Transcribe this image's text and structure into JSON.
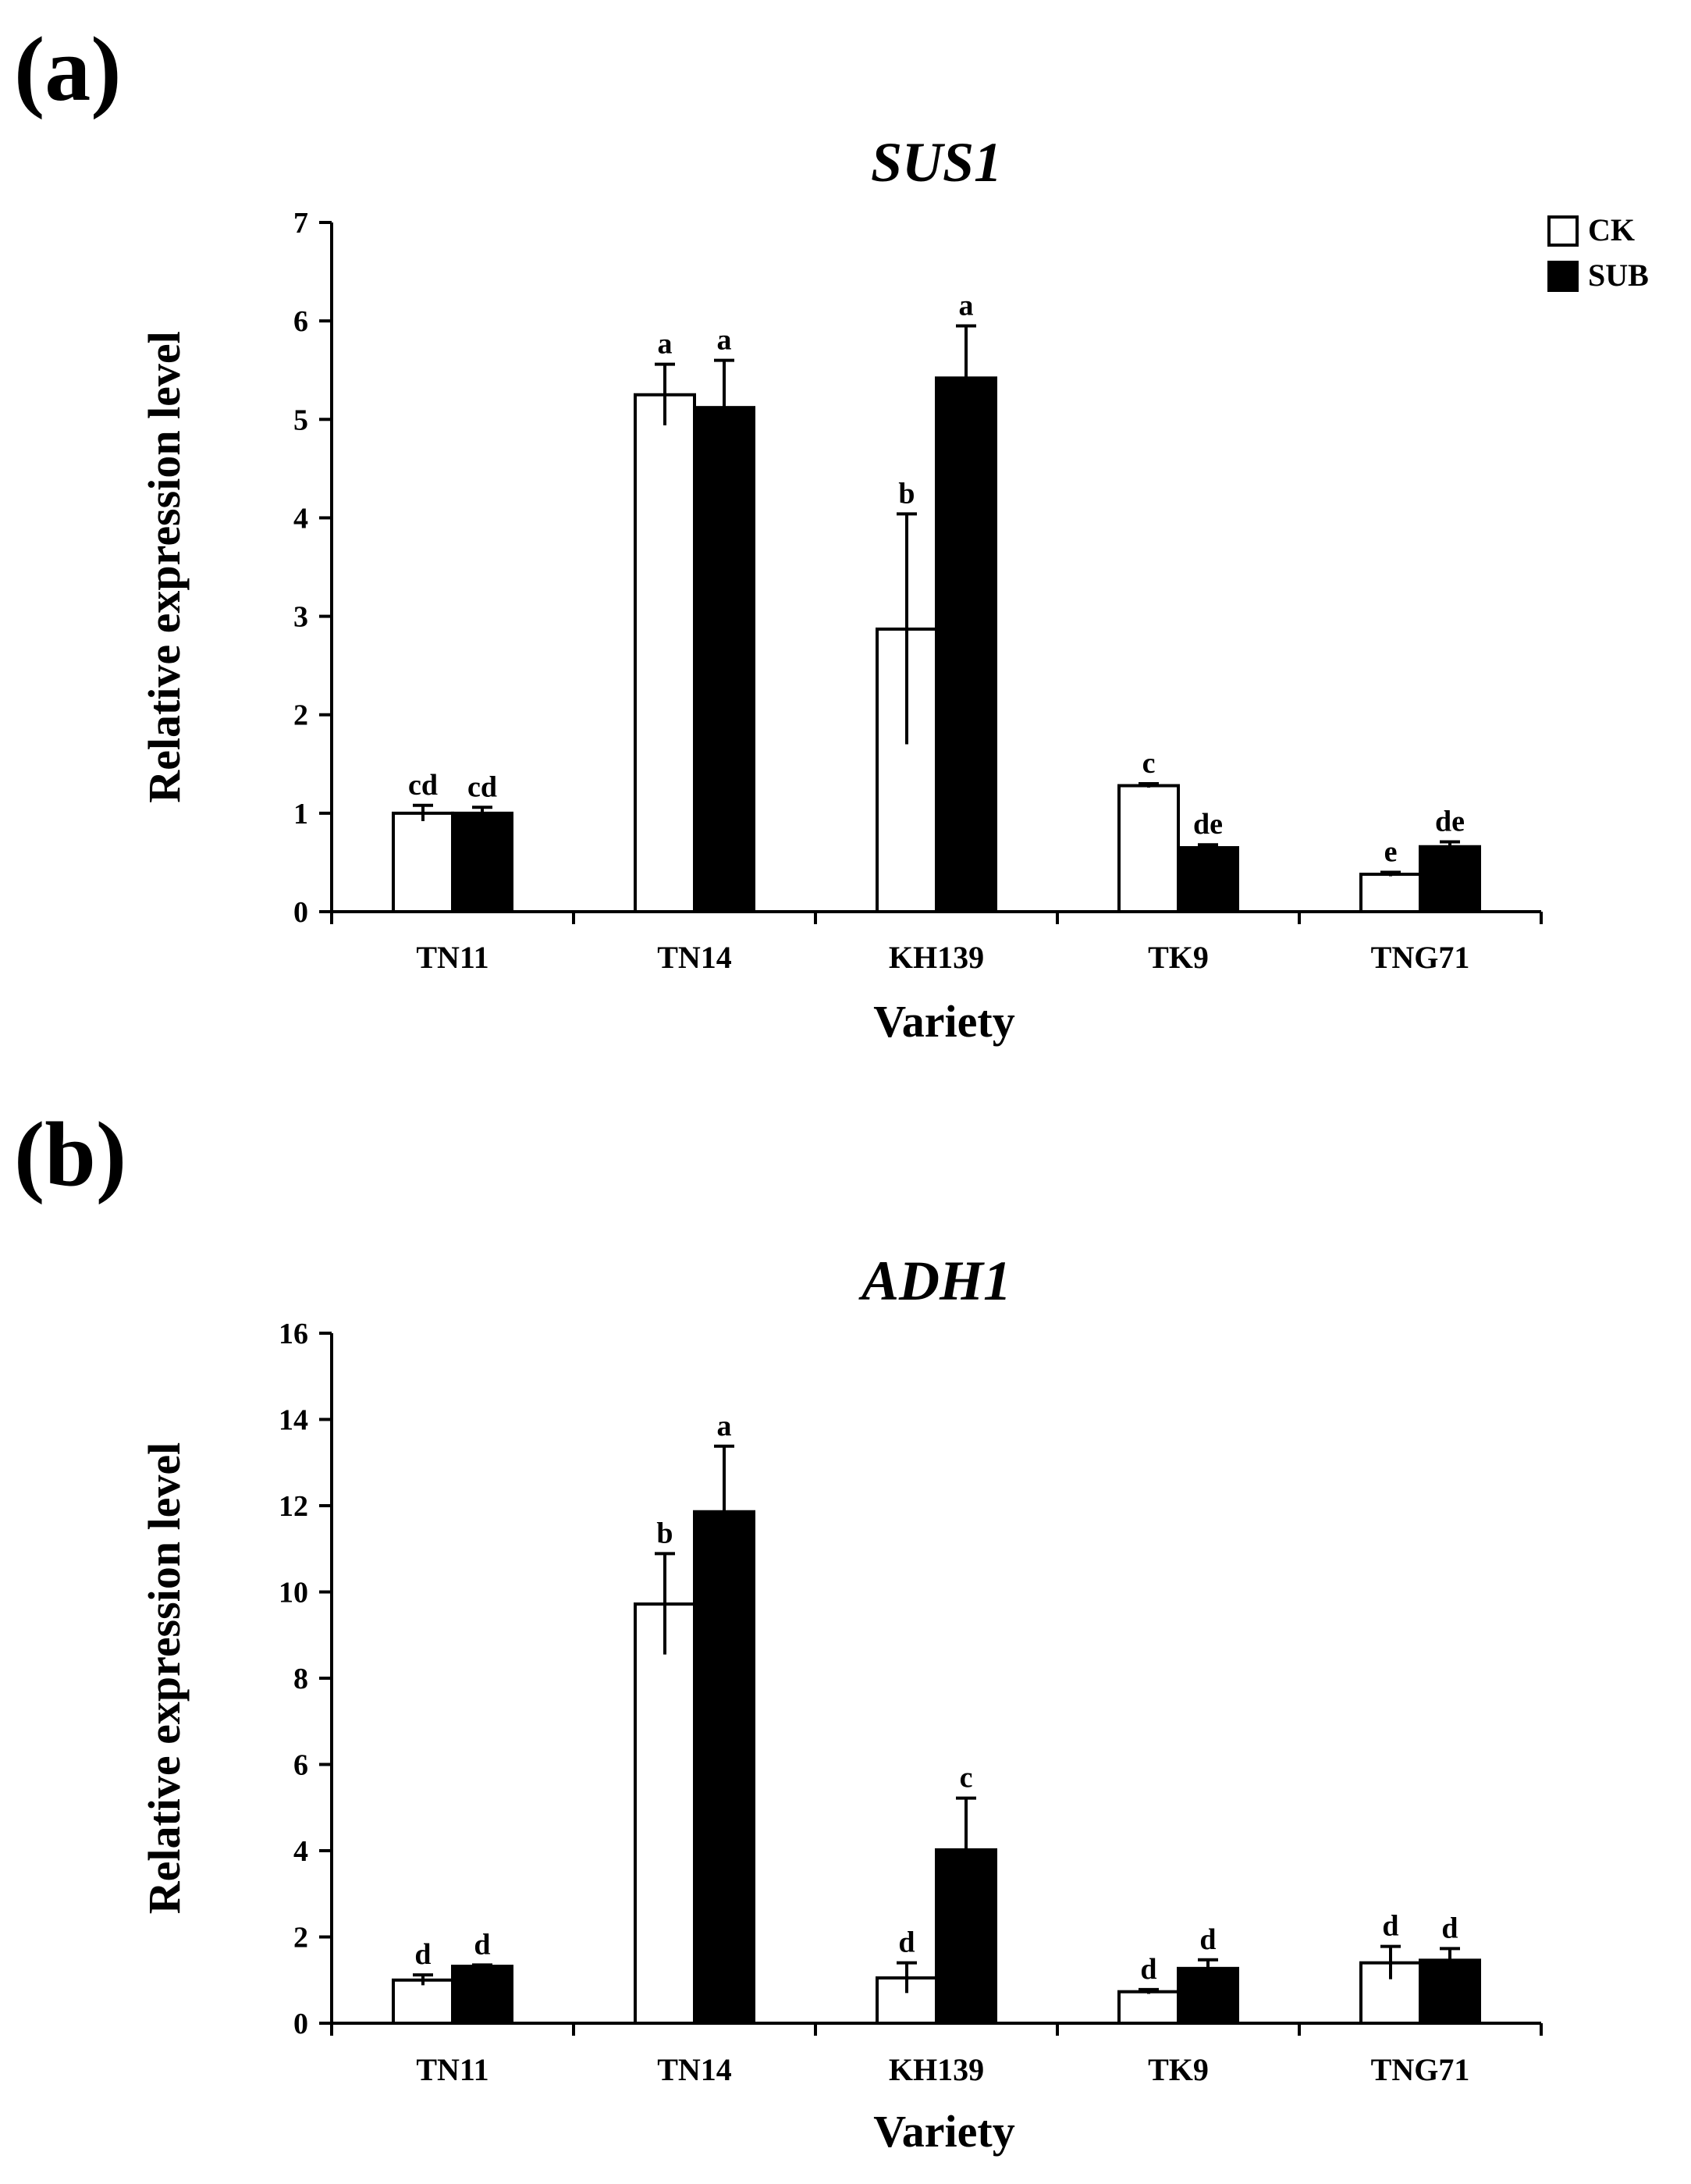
{
  "figure": {
    "panel_a_label": "(a)",
    "panel_b_label": "(b)"
  },
  "colors": {
    "ck_fill": "#ffffff",
    "sub_fill": "#000000",
    "axis": "#000000"
  },
  "legend": {
    "ck": "CK",
    "sub": "SUB"
  },
  "chart_data": [
    {
      "type": "bar",
      "title": "SUS1",
      "xlabel": "Variety",
      "ylabel": "Relative expression level",
      "ylim": [
        0,
        7
      ],
      "yticks": [
        0,
        1,
        2,
        3,
        4,
        5,
        6,
        7
      ],
      "categories": [
        "TN11",
        "TN14",
        "KH139",
        "TK9",
        "TNG71"
      ],
      "series": [
        {
          "name": "CK",
          "values": [
            1.0,
            5.25,
            2.87,
            1.28,
            0.38
          ],
          "errors": [
            0.08,
            0.31,
            1.17,
            0.02,
            0.02
          ],
          "labels": [
            "cd",
            "a",
            "b",
            "c",
            "e"
          ]
        },
        {
          "name": "SUB",
          "values": [
            1.0,
            5.12,
            5.42,
            0.65,
            0.66
          ],
          "errors": [
            0.06,
            0.48,
            0.53,
            0.03,
            0.05
          ],
          "labels": [
            "cd",
            "a",
            "a",
            "de",
            "de"
          ]
        }
      ]
    },
    {
      "type": "bar",
      "title": "ADH1",
      "xlabel": "Variety",
      "ylabel": "Relative expression level",
      "ylim": [
        0,
        16
      ],
      "yticks": [
        0,
        2,
        4,
        6,
        8,
        10,
        12,
        14,
        16
      ],
      "categories": [
        "TN11",
        "TN14",
        "KH139",
        "TK9",
        "TNG71"
      ],
      "series": [
        {
          "name": "CK",
          "values": [
            1.0,
            9.72,
            1.05,
            0.73,
            1.4
          ],
          "errors": [
            0.12,
            1.17,
            0.35,
            0.05,
            0.38
          ],
          "labels": [
            "d",
            "b",
            "d",
            "d",
            "d"
          ]
        },
        {
          "name": "SUB",
          "values": [
            1.32,
            11.86,
            4.02,
            1.27,
            1.46
          ],
          "errors": [
            0.03,
            1.52,
            1.2,
            0.2,
            0.27
          ],
          "labels": [
            "d",
            "a",
            "c",
            "d",
            "d"
          ]
        }
      ]
    }
  ]
}
